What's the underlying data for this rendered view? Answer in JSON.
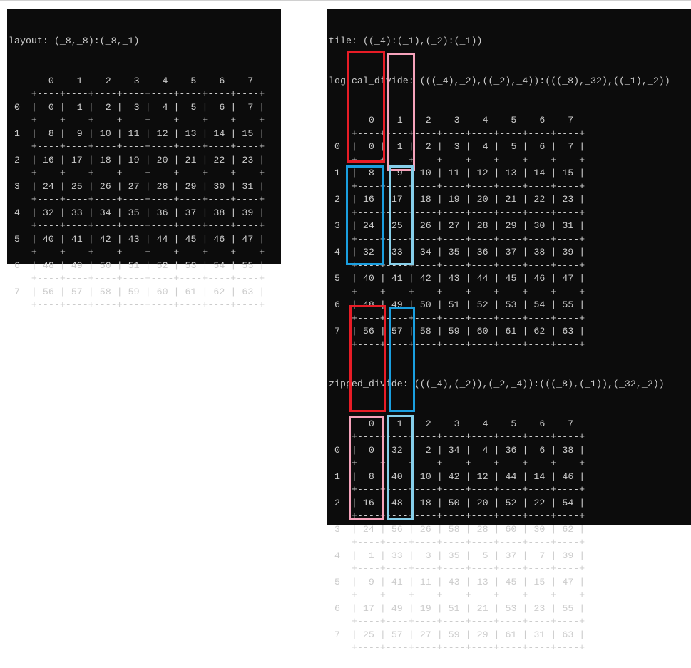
{
  "colors": {
    "red": "#e81c26",
    "pink": "#f6a3bb",
    "blue": "#1a9fe0",
    "light_blue": "#86cfea",
    "background": "#0c0c0c",
    "text": "#cccccc"
  },
  "left_panel": {
    "title": "layout: (_8,_8):(_8,_1)",
    "table": {
      "col_labels": [
        "0",
        "1",
        "2",
        "3",
        "4",
        "5",
        "6",
        "7"
      ],
      "row_labels": [
        "0",
        "1",
        "2",
        "3",
        "4",
        "5",
        "6",
        "7"
      ],
      "cells": [
        [
          0,
          1,
          2,
          3,
          4,
          5,
          6,
          7
        ],
        [
          8,
          9,
          10,
          11,
          12,
          13,
          14,
          15
        ],
        [
          16,
          17,
          18,
          19,
          20,
          21,
          22,
          23
        ],
        [
          24,
          25,
          26,
          27,
          28,
          29,
          30,
          31
        ],
        [
          32,
          33,
          34,
          35,
          36,
          37,
          38,
          39
        ],
        [
          40,
          41,
          42,
          43,
          44,
          45,
          46,
          47
        ],
        [
          48,
          49,
          50,
          51,
          52,
          53,
          54,
          55
        ],
        [
          56,
          57,
          58,
          59,
          60,
          61,
          62,
          63
        ]
      ]
    }
  },
  "right_panel": {
    "tile_title": "tile: ((_4):(_1),(_2):(_1))",
    "logical_divide": {
      "title": "logical_divide: (((_4),_2),((_2),_4)):(((_8),_32),((_1),_2))",
      "col_labels": [
        "0",
        "1",
        "2",
        "3",
        "4",
        "5",
        "6",
        "7"
      ],
      "row_labels": [
        "0",
        "1",
        "2",
        "3",
        "4",
        "5",
        "6",
        "7"
      ],
      "cells": [
        [
          0,
          1,
          2,
          3,
          4,
          5,
          6,
          7
        ],
        [
          8,
          9,
          10,
          11,
          12,
          13,
          14,
          15
        ],
        [
          16,
          17,
          18,
          19,
          20,
          21,
          22,
          23
        ],
        [
          24,
          25,
          26,
          27,
          28,
          29,
          30,
          31
        ],
        [
          32,
          33,
          34,
          35,
          36,
          37,
          38,
          39
        ],
        [
          40,
          41,
          42,
          43,
          44,
          45,
          46,
          47
        ],
        [
          48,
          49,
          50,
          51,
          52,
          53,
          54,
          55
        ],
        [
          56,
          57,
          58,
          59,
          60,
          61,
          62,
          63
        ]
      ],
      "highlights": [
        {
          "color": "red",
          "col": 0,
          "rows": [
            0,
            3
          ]
        },
        {
          "color": "pink",
          "col": 1,
          "rows": [
            0,
            3
          ]
        },
        {
          "color": "blue",
          "col": 0,
          "rows": [
            4,
            7
          ]
        },
        {
          "color": "light_blue",
          "col": 1,
          "rows": [
            4,
            7
          ]
        }
      ]
    },
    "zipped_divide": {
      "title": "zipped_divide: (((_4),(_2)),(_2,_4)):(((_8),(_1)),(_32,_2))",
      "col_labels": [
        "0",
        "1",
        "2",
        "3",
        "4",
        "5",
        "6",
        "7"
      ],
      "row_labels": [
        "0",
        "1",
        "2",
        "3",
        "4",
        "5",
        "6",
        "7"
      ],
      "cells": [
        [
          0,
          32,
          2,
          34,
          4,
          36,
          6,
          38
        ],
        [
          8,
          40,
          10,
          42,
          12,
          44,
          14,
          46
        ],
        [
          16,
          48,
          18,
          50,
          20,
          52,
          22,
          54
        ],
        [
          24,
          56,
          26,
          58,
          28,
          60,
          30,
          62
        ],
        [
          1,
          33,
          3,
          35,
          5,
          37,
          7,
          39
        ],
        [
          9,
          41,
          11,
          43,
          13,
          45,
          15,
          47
        ],
        [
          17,
          49,
          19,
          51,
          21,
          53,
          23,
          55
        ],
        [
          25,
          57,
          27,
          59,
          29,
          61,
          31,
          63
        ]
      ],
      "highlights": [
        {
          "color": "red",
          "col": 0,
          "rows": [
            0,
            3
          ]
        },
        {
          "color": "blue",
          "col": 1,
          "rows": [
            0,
            3
          ]
        },
        {
          "color": "pink",
          "col": 0,
          "rows": [
            4,
            7
          ]
        },
        {
          "color": "light_blue",
          "col": 1,
          "rows": [
            4,
            7
          ]
        }
      ]
    }
  }
}
